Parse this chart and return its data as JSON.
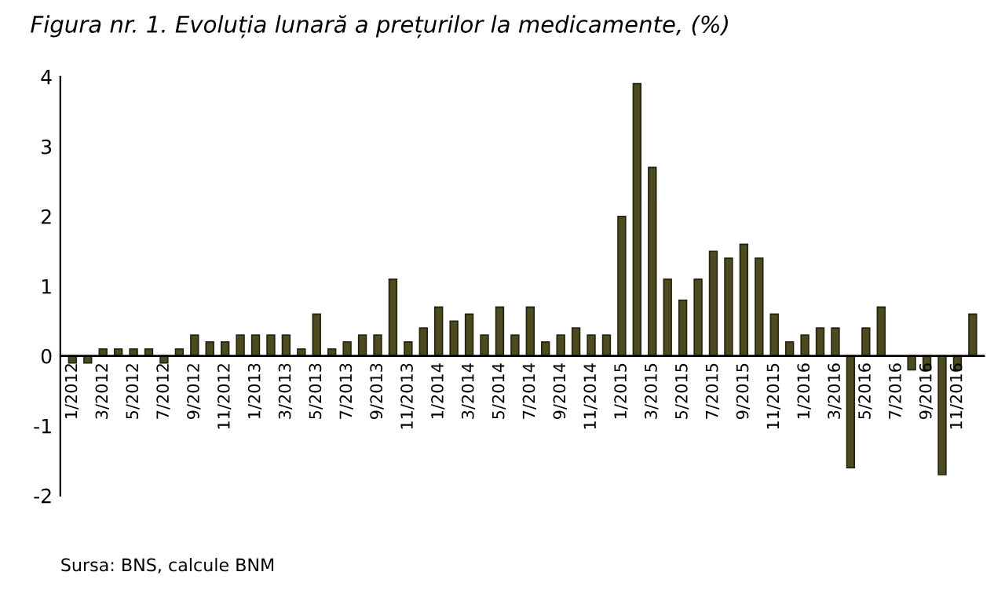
{
  "chart_data": {
    "type": "bar",
    "title": "Figura nr. 1. Evoluția lunară a prețurilor la medicamente, (%)",
    "categories": [
      "1/2012",
      null,
      "3/2012",
      null,
      "5/2012",
      null,
      "7/2012",
      null,
      "9/2012",
      null,
      "11/2012",
      null,
      "1/2013",
      null,
      "3/2013",
      null,
      "5/2013",
      null,
      "7/2013",
      null,
      "9/2013",
      null,
      "11/2013",
      null,
      "1/2014",
      null,
      "3/2014",
      null,
      "5/2014",
      null,
      "7/2014",
      null,
      "9/2014",
      null,
      "11/2014",
      null,
      "1/2015",
      null,
      "3/2015",
      null,
      "5/2015",
      null,
      "7/2015",
      null,
      "9/2015",
      null,
      "11/2015",
      null,
      "1/2016",
      null,
      "3/2016",
      null,
      "5/2016",
      null,
      "7/2016",
      null,
      "9/2016",
      null,
      "11/2016",
      null
    ],
    "values": [
      -0.1,
      -0.1,
      0.1,
      0.1,
      0.1,
      0.1,
      -0.1,
      0.1,
      0.3,
      0.2,
      0.2,
      0.3,
      0.3,
      0.3,
      0.3,
      0.1,
      0.6,
      0.1,
      0.2,
      0.3,
      0.3,
      1.1,
      0.2,
      0.4,
      0.7,
      0.5,
      0.6,
      0.3,
      0.7,
      0.3,
      0.7,
      0.2,
      0.3,
      0.4,
      0.3,
      0.3,
      2.0,
      3.9,
      2.7,
      1.1,
      0.8,
      1.1,
      1.5,
      1.4,
      1.6,
      1.4,
      0.6,
      0.2,
      0.3,
      0.4,
      0.4,
      -1.6,
      0.4,
      0.7,
      null,
      -0.2,
      -0.2,
      -1.7,
      -0.2,
      0.6
    ],
    "color": "#4d4a1f",
    "ylim": [
      -2,
      4
    ],
    "yticks": [
      -2,
      -1,
      0,
      1,
      2,
      3,
      4
    ],
    "grid": false,
    "annotations": [
      "Sursa: BNS, calcule BNM"
    ]
  }
}
